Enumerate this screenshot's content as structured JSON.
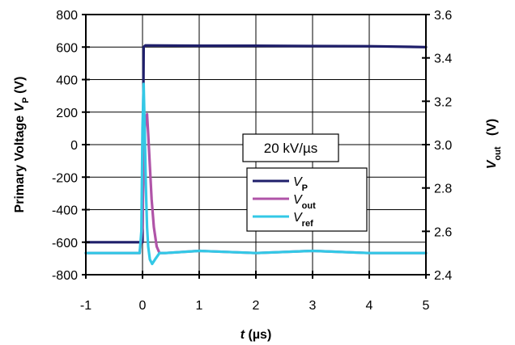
{
  "chart_data": {
    "type": "line",
    "title": "",
    "annotation": "20 kV/µs",
    "xlabel": {
      "italic": "t",
      "rest": " (µs)"
    },
    "ylabel_left": {
      "prefix": "Primary Voltage ",
      "italic": "V",
      "sub": "P",
      "suffix": " (V)"
    },
    "ylabel_right": {
      "italic": "V",
      "sub": "out",
      "suffix": "   (V)"
    },
    "xlim": [
      -1,
      5
    ],
    "ylim_left": [
      -800,
      800
    ],
    "ylim_right": [
      2.4,
      3.6
    ],
    "x_ticks": [
      -1,
      0,
      1,
      2,
      3,
      4,
      5
    ],
    "y_ticks_left": [
      -800,
      -600,
      -400,
      -200,
      0,
      200,
      400,
      600,
      800
    ],
    "y_ticks_right": [
      "2.4",
      "2.6",
      "2.8",
      "3.0",
      "3.2",
      "3.4",
      "3.6"
    ],
    "grid": true,
    "legend_position": "center-right",
    "colors": {
      "vp": "#1f1f6b",
      "vout": "#b054a8",
      "vref": "#33c8e6"
    },
    "series": [
      {
        "name": {
          "italic": "V",
          "sub": "P"
        },
        "axis": "left",
        "color": "#1f1f6b",
        "x": [
          -1,
          -0.05,
          0.0,
          0.02,
          0.05,
          1,
          2,
          3,
          4,
          5
        ],
        "y": [
          -600,
          -600,
          -600,
          600,
          610,
          608,
          608,
          606,
          605,
          600
        ]
      },
      {
        "name": {
          "italic": "V",
          "sub": "out"
        },
        "axis": "right",
        "color": "#b054a8",
        "x": [
          -1,
          -0.05,
          0.0,
          0.02,
          0.05,
          0.08,
          0.1,
          0.13,
          0.16,
          0.2,
          0.25,
          0.3,
          0.4,
          1,
          2,
          3,
          4,
          5
        ],
        "y": [
          2.5,
          2.5,
          2.62,
          2.95,
          3.12,
          3.14,
          3.05,
          2.9,
          2.75,
          2.62,
          2.53,
          2.5,
          2.5,
          2.51,
          2.5,
          2.51,
          2.5,
          2.5
        ]
      },
      {
        "name": {
          "italic": "V",
          "sub": "ref"
        },
        "axis": "right",
        "color": "#33c8e6",
        "x": [
          -1,
          -0.05,
          -0.02,
          0.0,
          0.02,
          0.04,
          0.06,
          0.08,
          0.1,
          0.13,
          0.17,
          0.22,
          0.3,
          0.4,
          1,
          2,
          3,
          4,
          5
        ],
        "y": [
          2.5,
          2.5,
          2.6,
          3.08,
          3.28,
          3.05,
          2.8,
          2.62,
          2.53,
          2.47,
          2.45,
          2.47,
          2.5,
          2.5,
          2.51,
          2.5,
          2.51,
          2.5,
          2.5
        ]
      }
    ]
  }
}
